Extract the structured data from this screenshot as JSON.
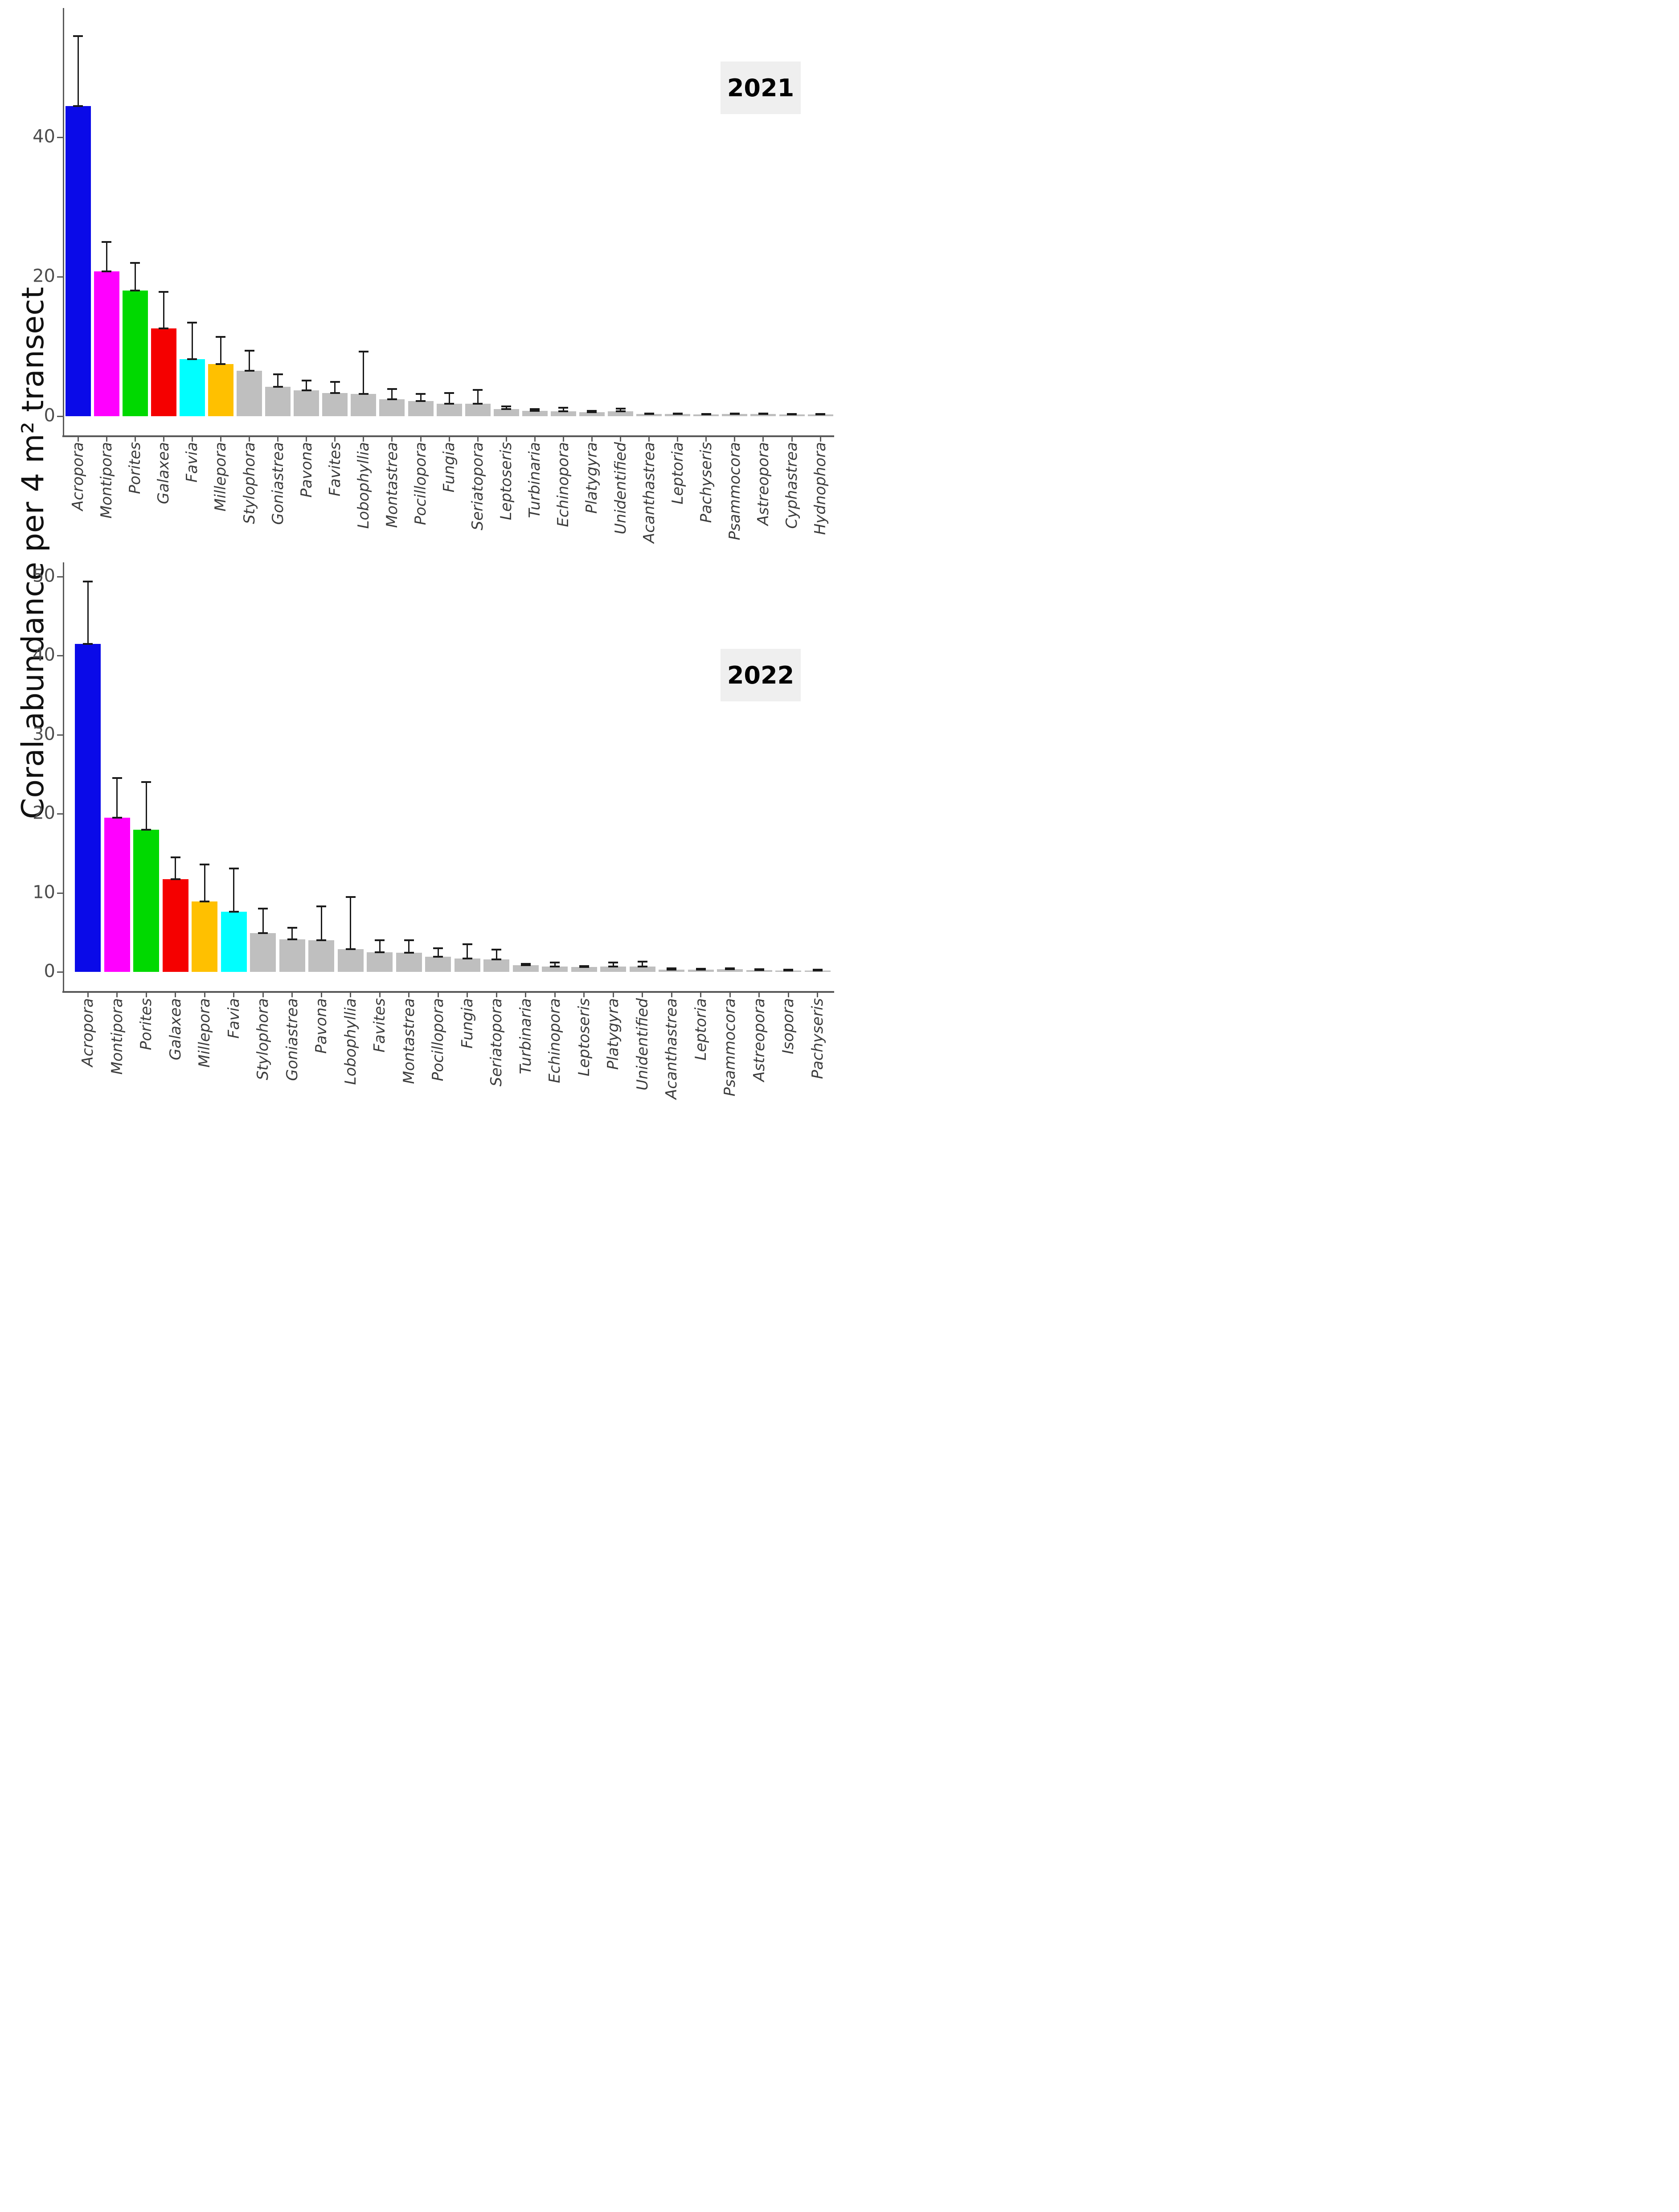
{
  "ylabel": "Coral abundance per 4 m² transect",
  "figure_background": "#ffffff",
  "axis_color": "#595959",
  "error_bar_color": "#1a1a1a",
  "gray_bar_color": "#bfbfbf",
  "chart_data": [
    {
      "type": "bar",
      "year_label": "2021",
      "title": "",
      "xlabel": "",
      "ylabel": "Coral abundance per 4 m² transect",
      "yticks": [
        0,
        20,
        40
      ],
      "ylim": [
        0,
        58.5
      ],
      "grid": false,
      "legend": "none",
      "categories": [
        "Acropora",
        "Montipora",
        "Porites",
        "Galaxea",
        "Favia",
        "Millepora",
        "Stylophora",
        "Goniastrea",
        "Pavona",
        "Favites",
        "Lobophyllia",
        "Montastrea",
        "Pocillopora",
        "Fungia",
        "Seriatopora",
        "Leptoseris",
        "Turbinaria",
        "Echinopora",
        "Platygyra",
        "Unidentified",
        "Acanthastrea",
        "Leptoria",
        "Pachyseris",
        "Psammocora",
        "Astreopora",
        "Cyphastrea",
        "Hydnophora"
      ],
      "values": [
        44.5,
        20.8,
        18,
        12.6,
        8.2,
        7.5,
        6.5,
        4.2,
        3.7,
        3.3,
        3.2,
        2.4,
        2.2,
        1.8,
        1.8,
        1.0,
        0.8,
        0.7,
        0.6,
        0.7,
        0.3,
        0.3,
        0.25,
        0.3,
        0.3,
        0.25,
        0.25
      ],
      "errors_high": [
        54.5,
        25,
        22,
        17.8,
        13.4,
        11.4,
        9.4,
        6.0,
        5.1,
        4.9,
        9.3,
        3.9,
        3.2,
        3.3,
        3.8,
        1.4,
        1.0,
        1.2,
        0.8,
        1.1,
        0.4,
        0.4,
        0.35,
        0.4,
        0.4,
        0.35,
        0.35
      ],
      "bar_colors": [
        "#0a0ae8",
        "#ff00ff",
        "#00d900",
        "#f50000",
        "#00ffff",
        "#ffc000",
        "#bfbfbf",
        "#bfbfbf",
        "#bfbfbf",
        "#bfbfbf",
        "#bfbfbf",
        "#bfbfbf",
        "#bfbfbf",
        "#bfbfbf",
        "#bfbfbf",
        "#bfbfbf",
        "#bfbfbf",
        "#bfbfbf",
        "#bfbfbf",
        "#bfbfbf",
        "#bfbfbf",
        "#bfbfbf",
        "#bfbfbf",
        "#bfbfbf",
        "#bfbfbf",
        "#bfbfbf",
        "#bfbfbf"
      ]
    },
    {
      "type": "bar",
      "year_label": "2022",
      "title": "",
      "xlabel": "",
      "ylabel": "Coral abundance per 4 m² transect",
      "yticks": [
        0,
        10,
        20,
        30,
        40,
        50
      ],
      "ylim": [
        0,
        51.8
      ],
      "grid": false,
      "legend": "none",
      "categories": [
        "Acropora",
        "Montipora",
        "Porites",
        "Galaxea",
        "Millepora",
        "Favia",
        "Stylophora",
        "Goniastrea",
        "Pavona",
        "Lobophyllia",
        "Favites",
        "Montastrea",
        "Pocillopora",
        "Fungia",
        "Seriatopora",
        "Turbinaria",
        "Echinopora",
        "Leptoseris",
        "Platygyra",
        "Unidentified",
        "Acanthastrea",
        "Leptoria",
        "Psammocora",
        "Astreopora",
        "Isopora",
        "Pachyseris"
      ],
      "values": [
        41.5,
        19.5,
        18,
        11.7,
        8.9,
        7.6,
        4.9,
        4.1,
        4.0,
        2.9,
        2.5,
        2.4,
        1.9,
        1.7,
        1.6,
        0.85,
        0.7,
        0.6,
        0.7,
        0.7,
        0.3,
        0.3,
        0.35,
        0.25,
        0.2,
        0.2
      ],
      "errors_high": [
        49.4,
        24.5,
        24,
        14.5,
        13.6,
        13.1,
        8.0,
        5.6,
        8.3,
        9.5,
        4.0,
        4.0,
        3.0,
        3.5,
        2.8,
        1.0,
        1.2,
        0.75,
        1.2,
        1.3,
        0.45,
        0.4,
        0.45,
        0.35,
        0.3,
        0.3
      ],
      "bar_colors": [
        "#0a0ae8",
        "#ff00ff",
        "#00d900",
        "#f50000",
        "#ffc000",
        "#00ffff",
        "#bfbfbf",
        "#bfbfbf",
        "#bfbfbf",
        "#bfbfbf",
        "#bfbfbf",
        "#bfbfbf",
        "#bfbfbf",
        "#bfbfbf",
        "#bfbfbf",
        "#bfbfbf",
        "#bfbfbf",
        "#bfbfbf",
        "#bfbfbf",
        "#bfbfbf",
        "#bfbfbf",
        "#bfbfbf",
        "#bfbfbf",
        "#bfbfbf",
        "#bfbfbf",
        "#bfbfbf"
      ]
    }
  ]
}
